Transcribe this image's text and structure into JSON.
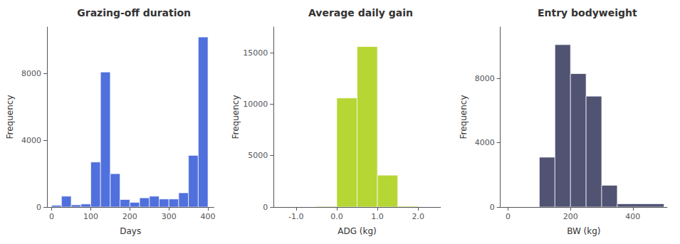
{
  "chart_data": [
    {
      "type": "histogram",
      "title": "Grazing-off duration",
      "xlabel": "Days",
      "ylabel": "Frequency",
      "bins": [
        0,
        25,
        50,
        75,
        100,
        125,
        150,
        175,
        200,
        225,
        250,
        275,
        300,
        325,
        350,
        375,
        400
      ],
      "values": [
        100,
        650,
        130,
        180,
        2700,
        8100,
        2000,
        450,
        280,
        550,
        650,
        480,
        480,
        850,
        3100,
        10200
      ],
      "xlim": [
        -12,
        415
      ],
      "ylim": [
        0,
        10800
      ],
      "xticks": [
        0,
        100,
        200,
        300,
        400
      ],
      "yticks": [
        0,
        4000,
        8000
      ],
      "grid": false
    },
    {
      "type": "histogram",
      "title": "Average daily gain",
      "xlabel": "ADG (kg)",
      "ylabel": "Frequency",
      "bins": [
        -1.5,
        -1.0,
        -0.5,
        0.0,
        0.5,
        1.0,
        1.5,
        2.0,
        2.5
      ],
      "values": [
        0,
        0,
        60,
        10600,
        15600,
        3100,
        80,
        0
      ],
      "xlim": [
        -1.55,
        2.55
      ],
      "ylim": [
        0,
        17500
      ],
      "xticks": [
        {
          "value": -1.0,
          "label": "-1.0"
        },
        {
          "value": 0.0,
          "label": "0.0"
        },
        {
          "value": 1.0,
          "label": "1.0"
        },
        {
          "value": 2.0,
          "label": "2.0"
        }
      ],
      "yticks": [
        0,
        5000,
        10000,
        15000
      ],
      "grid": false
    },
    {
      "type": "histogram",
      "title": "Entry bodyweight",
      "xlabel": "BW (kg)",
      "ylabel": "Frequency",
      "bins": [
        0,
        100,
        150,
        200,
        250,
        300,
        350,
        500
      ],
      "values": [
        0,
        3100,
        10100,
        8300,
        6900,
        1350,
        200
      ],
      "xlim": [
        -25,
        510
      ],
      "ylim": [
        0,
        11200
      ],
      "xticks": [
        0,
        200,
        400
      ],
      "yticks": [
        0,
        4000,
        8000
      ],
      "grid": false
    }
  ]
}
